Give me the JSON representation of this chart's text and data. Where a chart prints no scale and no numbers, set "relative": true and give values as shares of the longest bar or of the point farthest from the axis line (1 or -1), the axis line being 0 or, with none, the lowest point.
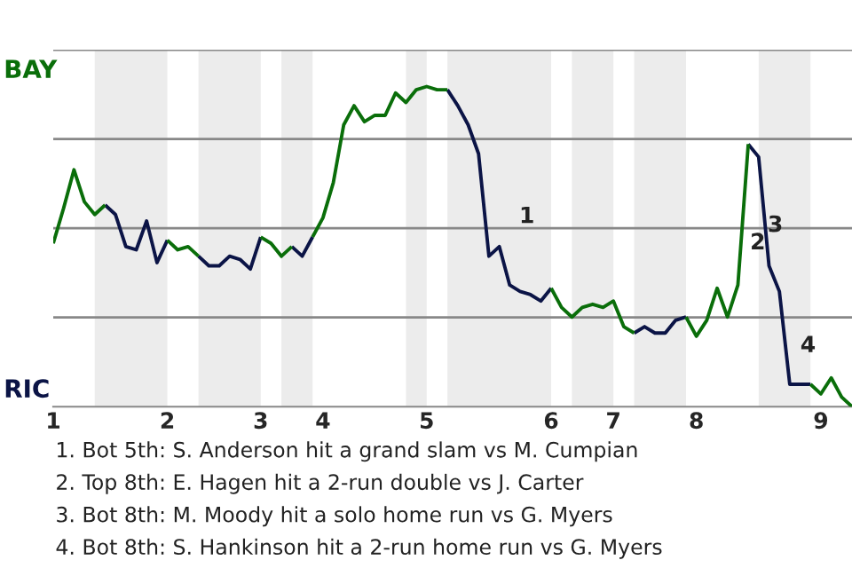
{
  "chart_data": {
    "type": "line",
    "relative": true,
    "categories": [
      "1",
      null,
      null,
      null,
      null,
      null,
      null,
      null,
      null,
      null,
      null,
      "2",
      null,
      null,
      null,
      null,
      null,
      null,
      null,
      null,
      "3",
      null,
      null,
      null,
      null,
      null,
      "4",
      null,
      null,
      null,
      null,
      null,
      null,
      null,
      null,
      null,
      "5",
      null,
      null,
      null,
      null,
      null,
      null,
      null,
      null,
      null,
      null,
      null,
      "6",
      null,
      null,
      null,
      null,
      null,
      "7",
      null,
      null,
      null,
      null,
      null,
      null,
      null,
      "8",
      null,
      null,
      null,
      null,
      null,
      null,
      null,
      null,
      null,
      null,
      null,
      "9",
      null,
      null,
      null
    ],
    "series": [
      {
        "color": "#0a6e0a",
        "values": [
          0.51,
          0.62,
          0.74,
          0.64,
          0.6,
          0.63,
          null,
          null,
          null,
          null,
          null,
          0.52,
          0.49,
          0.5,
          0.47,
          null,
          null,
          null,
          null,
          null,
          0.53,
          0.51,
          0.47,
          0.5,
          null,
          0.53,
          0.59,
          0.7,
          0.88,
          0.94,
          0.89,
          0.91,
          0.91,
          0.98,
          0.95,
          0.99,
          1,
          0.99,
          0.99,
          null,
          null,
          null,
          null,
          null,
          null,
          null,
          null,
          null,
          0.37,
          0.31,
          0.28,
          0.31,
          0.32,
          0.31,
          0.33,
          0.25,
          0.23,
          null,
          null,
          null,
          null,
          0.28,
          0.22,
          0.27,
          0.37,
          0.28,
          0.38,
          0.82,
          null,
          null,
          null,
          null,
          null,
          0.07,
          0.04,
          0.09,
          0.03,
          0
        ]
      },
      {
        "color": "#0b1446",
        "values": [
          null,
          null,
          null,
          null,
          null,
          0.63,
          0.6,
          0.5,
          0.49,
          0.58,
          0.45,
          0.52,
          null,
          null,
          0.47,
          0.44,
          0.44,
          0.47,
          0.46,
          0.43,
          0.53,
          null,
          null,
          0.5,
          0.47,
          0.53,
          null,
          null,
          null,
          null,
          null,
          null,
          null,
          null,
          null,
          null,
          null,
          null,
          0.99,
          0.94,
          0.88,
          0.79,
          0.47,
          0.5,
          0.38,
          0.36,
          0.35,
          0.33,
          0.37,
          null,
          null,
          null,
          null,
          null,
          null,
          null,
          0.23,
          0.25,
          0.23,
          0.23,
          0.27,
          0.28,
          null,
          null,
          null,
          null,
          null,
          0.82,
          0.78,
          0.44,
          0.36,
          0.07,
          0.07,
          0.07,
          null,
          null,
          null,
          null
        ]
      }
    ],
    "grid": "y",
    "annotations": [
      "BAY",
      "RIC",
      "1",
      "2",
      "3",
      "4",
      "1. Bot 5th: S. Anderson hit a grand slam vs M. Cumpian",
      "2. Top 8th: E. Hagen hit a 2-run double vs J. Carter",
      "3. Bot 8th: M. Moody hit a solo home run vs G. Myers",
      "4. Bot 8th: S. Hankinson hit a 2-run home run vs G. Myers"
    ]
  }
}
